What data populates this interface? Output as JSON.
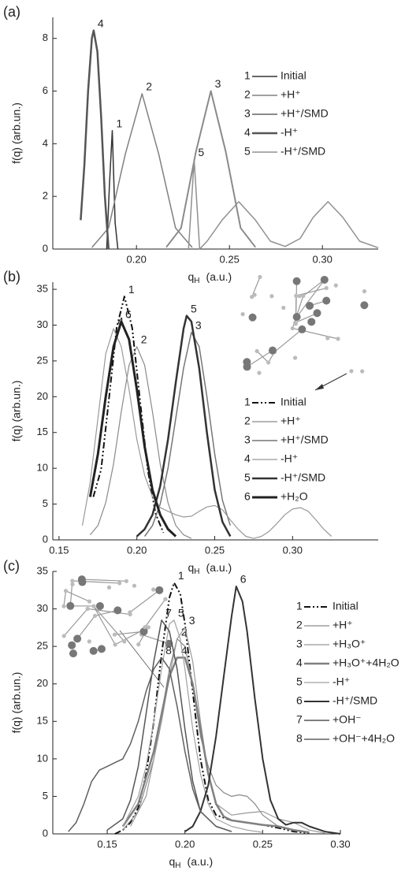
{
  "chart_data": [
    {
      "type": "line",
      "panel_label": "(a)",
      "ylabel": "f(q)  (arb.un.)",
      "xlabel": "q",
      "xlabel_sub": "H",
      "xlabel_unit": "(a.u.)",
      "xlim": [
        0.155,
        0.33
      ],
      "ylim": [
        0,
        8.8
      ],
      "xticks": [
        {
          "value": 0.2,
          "label": "0.20"
        },
        {
          "value": 0.25,
          "label": "0.25"
        },
        {
          "value": 0.3,
          "label": "0.30"
        }
      ],
      "yticks": [
        0,
        2,
        4,
        6,
        8
      ],
      "legend": "upper right",
      "series": [
        {
          "label": "1",
          "name": "Initial",
          "color": "#333333",
          "width": 1.5,
          "style": "solid",
          "x": [
            0.184,
            0.1855,
            0.187,
            0.1885,
            0.19
          ],
          "values": [
            0,
            2.5,
            4.5,
            1,
            0
          ]
        },
        {
          "label": "2",
          "name": "+H⁺",
          "color": "#808080",
          "width": 1.5,
          "style": "solid",
          "x": [
            0.176,
            0.185,
            0.194,
            0.203,
            0.212,
            0.221,
            0.23
          ],
          "values": [
            0.06,
            0.8,
            3.6,
            5.9,
            3.6,
            0.8,
            0.06
          ]
        },
        {
          "label": "3",
          "name": "+H⁺/SMD",
          "color": "#8a8a8a",
          "width": 2,
          "style": "solid",
          "x": [
            0.216,
            0.224,
            0.232,
            0.24,
            0.248,
            0.256,
            0.264
          ],
          "values": [
            0.07,
            0.8,
            3.7,
            6,
            3.7,
            0.8,
            0.07
          ]
        },
        {
          "label": "4",
          "name": "-H⁺",
          "color": "#555555",
          "width": 2.5,
          "style": "solid",
          "x": [
            0.17,
            0.172,
            0.174,
            0.176,
            0.177,
            0.179,
            0.181,
            0.183,
            0.185
          ],
          "values": [
            1.1,
            3.2,
            6,
            8,
            8.3,
            7.5,
            5,
            2,
            0
          ]
        },
        {
          "label": "5",
          "name": "-H⁺/SMD",
          "color": "#909090",
          "width": 1.5,
          "style": "solid",
          "x": [
            0.228,
            0.231,
            0.234,
            0.238,
            0.246,
            0.255,
            0.264,
            0.272,
            0.28,
            0.288,
            0.295,
            0.303,
            0.311,
            0.32,
            0.33
          ],
          "values": [
            0,
            3.4,
            0,
            0.3,
            1.1,
            1.8,
            1.1,
            0.3,
            0.1,
            0.4,
            1.2,
            1.8,
            1.2,
            0.3,
            0.05
          ]
        }
      ]
    },
    {
      "type": "line",
      "panel_label": "(b)",
      "ylabel": "f(q)  (arb.un.)",
      "xlabel": "q",
      "xlabel_sub": "H",
      "xlabel_unit": "(a.u.)",
      "xlim": [
        0.146,
        0.355
      ],
      "ylim": [
        0,
        36
      ],
      "xticks": [
        {
          "value": 0.15,
          "label": "0.15"
        },
        {
          "value": 0.2,
          "label": "0.20"
        },
        {
          "value": 0.25,
          "label": "0.25"
        },
        {
          "value": 0.3,
          "label": "0.30"
        }
      ],
      "yticks": [
        0,
        5,
        10,
        15,
        20,
        25,
        30,
        35
      ],
      "legend": "lower right",
      "series": [
        {
          "label": "1",
          "name": "Initial",
          "color": "#111111",
          "width": 2,
          "style": "dashdot",
          "x": [
            0.172,
            0.177,
            0.182,
            0.187,
            0.192,
            0.197,
            0.202,
            0.207,
            0.212,
            0.217
          ],
          "values": [
            6,
            9.8,
            19.5,
            29.6,
            34,
            29.6,
            19.5,
            9.8,
            3.7,
            1
          ]
        },
        {
          "label": "2",
          "name": "+H⁺",
          "color": "#8a8a8a",
          "width": 1.2,
          "style": "solid",
          "x": [
            0.17,
            0.175,
            0.18,
            0.185,
            0.19,
            0.195,
            0.2,
            0.205,
            0.21,
            0.215,
            0.22,
            0.225,
            0.23,
            0.235
          ],
          "values": [
            0.7,
            2,
            5.2,
            10.6,
            17.9,
            24.4,
            27,
            24.4,
            17.9,
            10.6,
            5.2,
            2,
            0.7,
            0.2
          ]
        },
        {
          "label": "3",
          "name": "+H⁺/SMD",
          "color": "#777777",
          "width": 1.5,
          "style": "solid",
          "x": [
            0.205,
            0.21,
            0.215,
            0.22,
            0.225,
            0.23,
            0.235,
            0.24,
            0.245,
            0.25,
            0.255,
            0.26
          ],
          "values": [
            0.5,
            2,
            5,
            10,
            17,
            24,
            29,
            27,
            20,
            12,
            5.5,
            2
          ]
        },
        {
          "label": "4",
          "name": "-H⁺",
          "color": "#999999",
          "width": 1.2,
          "style": "solid",
          "x": [
            0.165,
            0.17,
            0.175,
            0.18,
            0.185,
            0.19,
            0.195,
            0.2,
            0.205,
            0.21,
            0.215,
            0.22,
            0.225,
            0.23,
            0.235,
            0.24,
            0.245,
            0.25,
            0.255,
            0.26,
            0.265,
            0.27,
            0.275,
            0.28,
            0.285,
            0.29,
            0.295,
            0.3,
            0.305,
            0.31,
            0.315,
            0.32,
            0.325
          ],
          "values": [
            2,
            8,
            17,
            26,
            29.5,
            27,
            21,
            14,
            9,
            6,
            4.5,
            4,
            3.5,
            3.2,
            3.3,
            4,
            4.6,
            4.8,
            4.2,
            2.8,
            1.5,
            0.5,
            0.2,
            0.5,
            1.2,
            2.3,
            3.5,
            4.3,
            4.5,
            4,
            2.8,
            1.5,
            0.5
          ]
        },
        {
          "label": "5",
          "name": "-H⁺/SMD",
          "color": "#333333",
          "width": 2.5,
          "style": "solid",
          "x": [
            0.2,
            0.205,
            0.21,
            0.215,
            0.22,
            0.225,
            0.23,
            0.232,
            0.235,
            0.24,
            0.245,
            0.25,
            0.255,
            0.26
          ],
          "values": [
            0.5,
            1.5,
            3.5,
            7.5,
            14,
            22,
            29.5,
            31.3,
            30.5,
            24,
            15,
            7,
            2.5,
            0.5
          ]
        },
        {
          "label": "6",
          "name": "+H₂O",
          "color": "#222222",
          "width": 3,
          "style": "solid",
          "x": [
            0.17,
            0.175,
            0.18,
            0.185,
            0.19,
            0.195,
            0.2,
            0.205,
            0.21,
            0.215,
            0.22,
            0.225
          ],
          "values": [
            6,
            12,
            20,
            27,
            30.5,
            28,
            21,
            13,
            7,
            3.5,
            1.5,
            0.5
          ]
        }
      ]
    },
    {
      "type": "line",
      "panel_label": "(c)",
      "ylabel": "f(q)  (arb.un.)",
      "xlabel": "q",
      "xlabel_sub": "H",
      "xlabel_unit": "(a.u.)",
      "xlim": [
        0.115,
        0.3
      ],
      "ylim": [
        0,
        35
      ],
      "xticks": [
        {
          "value": 0.15,
          "label": "0.15"
        },
        {
          "value": 0.2,
          "label": "0.20"
        },
        {
          "value": 0.25,
          "label": "0.25"
        },
        {
          "value": 0.3,
          "label": "0.30"
        }
      ],
      "yticks": [
        0,
        5,
        10,
        15,
        20,
        25,
        30,
        35
      ],
      "legend": "center right",
      "series": [
        {
          "label": "1",
          "name": "Initial",
          "color": "#111111",
          "width": 2,
          "style": "dashdot",
          "x": [
            0.155,
            0.16,
            0.165,
            0.17,
            0.175,
            0.18,
            0.185,
            0.19,
            0.193,
            0.197,
            0.2,
            0.205,
            0.21,
            0.215,
            0.22,
            0.23,
            0.24,
            0.25,
            0.26,
            0.27,
            0.28
          ],
          "values": [
            0,
            0.5,
            1.5,
            3.5,
            8,
            15,
            24,
            31.5,
            33.5,
            32,
            28,
            19,
            10,
            4.5,
            2.5,
            1.8,
            1.5,
            1.2,
            0.8,
            0.3,
            0.1
          ]
        },
        {
          "label": "2",
          "name": "+H⁺",
          "color": "#8a8a8a",
          "width": 1.2,
          "style": "solid",
          "x": [
            0.16,
            0.17,
            0.18,
            0.185,
            0.19,
            0.195,
            0.2,
            0.205,
            0.21,
            0.215,
            0.22,
            0.225,
            0.23,
            0.235,
            0.24,
            0.245,
            0.25,
            0.26,
            0.27,
            0.28
          ],
          "values": [
            0.5,
            3,
            10,
            16,
            22,
            26,
            25,
            20,
            13,
            9,
            6.5,
            5.5,
            5,
            5.2,
            5,
            4,
            2.5,
            1,
            0.5,
            0.2
          ]
        },
        {
          "label": "3",
          "name": "+H₃O⁺",
          "color": "#999999",
          "width": 1.2,
          "style": "solid",
          "x": [
            0.165,
            0.175,
            0.185,
            0.19,
            0.195,
            0.2,
            0.205,
            0.21,
            0.215,
            0.22,
            0.23,
            0.24,
            0.25,
            0.26,
            0.27,
            0.28,
            0.29
          ],
          "values": [
            1,
            5,
            15,
            21,
            26,
            27.5,
            23,
            15,
            8,
            4,
            2.5,
            2.8,
            3,
            2,
            1.5,
            0.5,
            0.1
          ]
        },
        {
          "label": "4",
          "name": "+H₃O⁺+4H₂O",
          "color": "#808080",
          "width": 2.5,
          "style": "solid",
          "x": [
            0.16,
            0.17,
            0.18,
            0.185,
            0.19,
            0.195,
            0.2,
            0.205,
            0.21,
            0.215,
            0.22,
            0.225,
            0.23,
            0.24,
            0.25,
            0.26,
            0.27,
            0.28
          ],
          "values": [
            1,
            4,
            11,
            16,
            21,
            23.5,
            23.5,
            20,
            14,
            8,
            4,
            2.3,
            1.8,
            1.5,
            1.2,
            1,
            0.5,
            0.2
          ]
        },
        {
          "label": "5",
          "name": "-H⁺",
          "color": "#a0a0a0",
          "width": 1.2,
          "style": "solid",
          "x": [
            0.16,
            0.17,
            0.175,
            0.18,
            0.185,
            0.19,
            0.193,
            0.197,
            0.2,
            0.205,
            0.21,
            0.215,
            0.22,
            0.23,
            0.24,
            0.25
          ],
          "values": [
            1,
            5,
            9,
            15,
            22,
            28,
            28.5,
            26,
            22,
            14,
            8,
            4,
            2,
            1,
            0.5,
            0.2
          ]
        },
        {
          "label": "6",
          "name": "-H⁺/SMD",
          "color": "#333333",
          "width": 2,
          "style": "solid",
          "x": [
            0.2,
            0.205,
            0.21,
            0.215,
            0.22,
            0.225,
            0.23,
            0.233,
            0.237,
            0.24,
            0.245,
            0.25,
            0.255,
            0.26,
            0.265,
            0.27,
            0.275,
            0.28,
            0.29,
            0.3
          ],
          "values": [
            0.3,
            1,
            3,
            6.5,
            13,
            21,
            29,
            33,
            31,
            27,
            18,
            10,
            4.5,
            2,
            1.2,
            1.5,
            1.5,
            1,
            0.3,
            0
          ]
        },
        {
          "label": "7",
          "name": "+OH⁻",
          "color": "#555555",
          "width": 1.5,
          "style": "solid",
          "x": [
            0.15,
            0.16,
            0.165,
            0.17,
            0.175,
            0.18,
            0.185,
            0.19,
            0.195,
            0.2,
            0.205,
            0.21,
            0.22,
            0.23
          ],
          "values": [
            0.5,
            2,
            4.5,
            9,
            16,
            23,
            28.5,
            27,
            22,
            14,
            7,
            3,
            1,
            0.3
          ]
        },
        {
          "label": "8",
          "name": "+OH⁻+4H₂O",
          "color": "#606060",
          "width": 1.5,
          "style": "solid",
          "x": [
            0.125,
            0.13,
            0.135,
            0.14,
            0.145,
            0.15,
            0.155,
            0.16,
            0.165,
            0.17,
            0.175,
            0.18,
            0.185,
            0.19,
            0.195,
            0.2,
            0.205,
            0.21,
            0.22,
            0.23
          ],
          "values": [
            0.3,
            1.5,
            4,
            7,
            8.5,
            9,
            9.5,
            10,
            12,
            15,
            19,
            22,
            23.5,
            22,
            17,
            11,
            6,
            3,
            1,
            0.3
          ]
        }
      ]
    }
  ]
}
